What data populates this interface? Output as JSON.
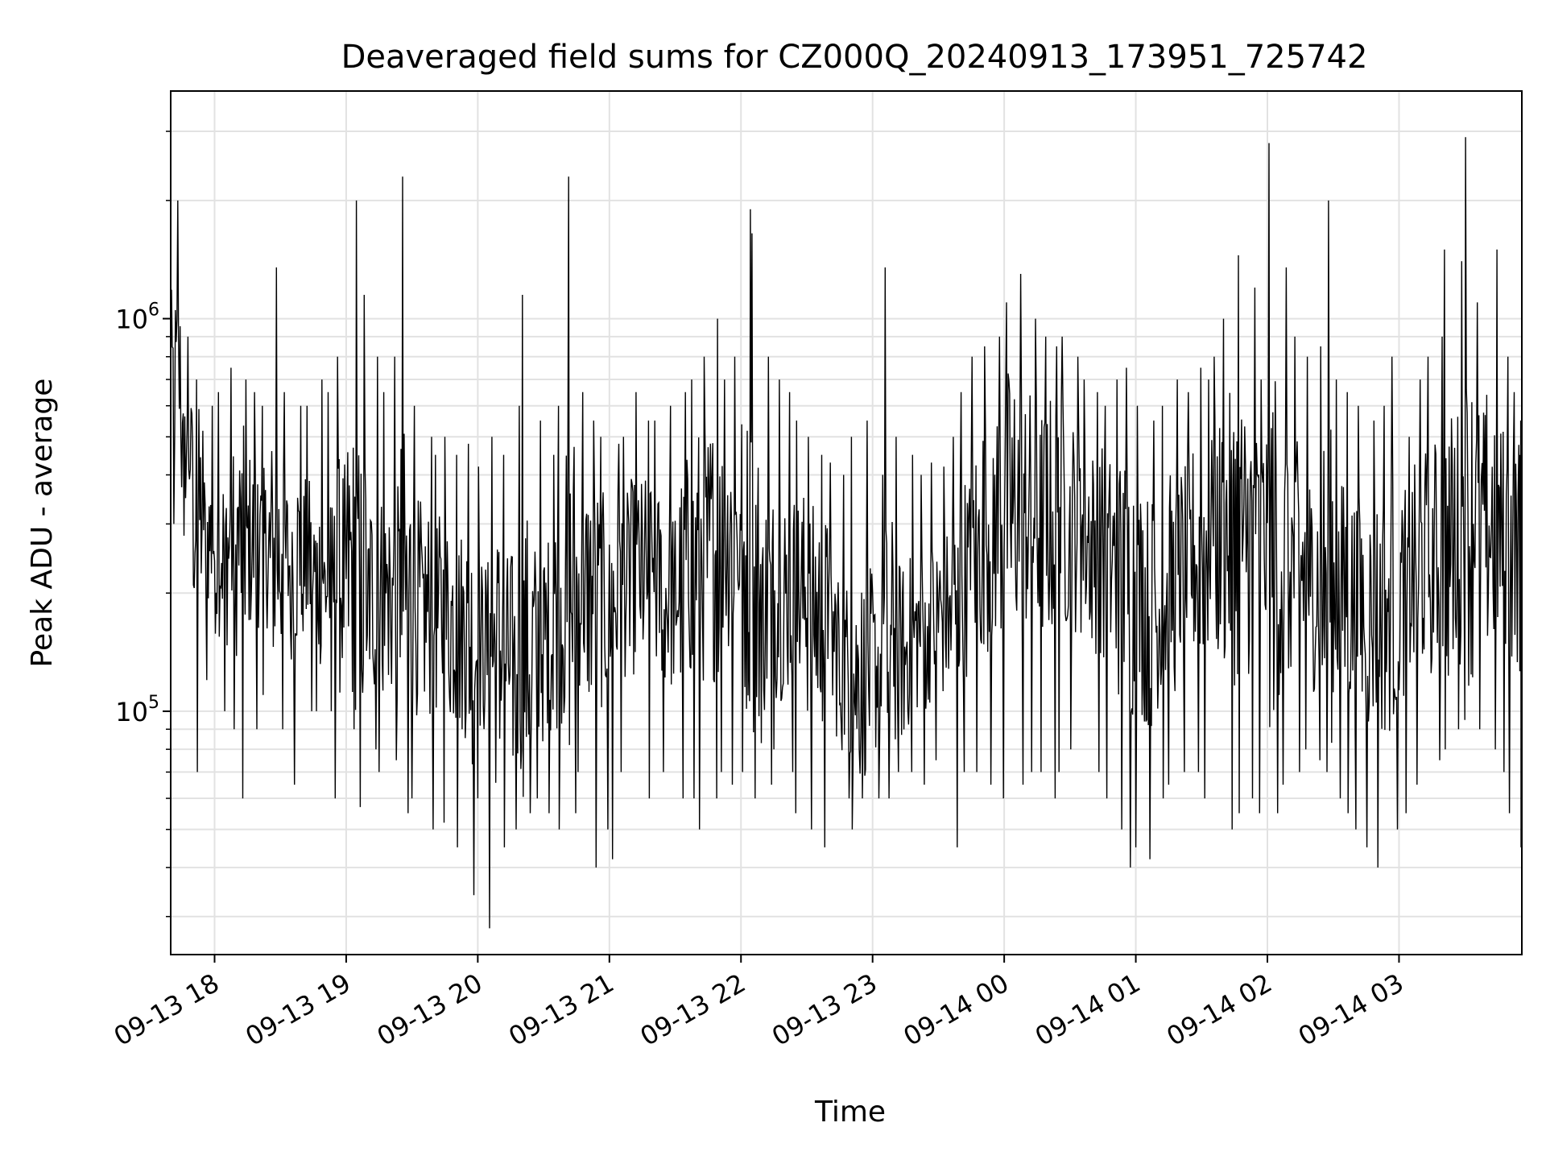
{
  "chart_data": {
    "type": "line",
    "title": "Deaveraged field sums for CZ000Q_20240913_173951_725742",
    "xlabel": "Time",
    "ylabel": "Peak ADU - average",
    "y_scale": "log",
    "ylim": [
      24000,
      3800000
    ],
    "xlim": [
      "2024-09-13 17:40",
      "2024-09-14 03:56"
    ],
    "grid": true,
    "line_color": "#000000",
    "x_ticks": [
      {
        "time": "2024-09-13 18:00",
        "label": "09-13 18"
      },
      {
        "time": "2024-09-13 19:00",
        "label": "09-13 19"
      },
      {
        "time": "2024-09-13 20:00",
        "label": "09-13 20"
      },
      {
        "time": "2024-09-13 21:00",
        "label": "09-13 21"
      },
      {
        "time": "2024-09-13 22:00",
        "label": "09-13 22"
      },
      {
        "time": "2024-09-13 23:00",
        "label": "09-13 23"
      },
      {
        "time": "2024-09-14 00:00",
        "label": "09-14 00"
      },
      {
        "time": "2024-09-14 01:00",
        "label": "09-14 01"
      },
      {
        "time": "2024-09-14 02:00",
        "label": "09-14 02"
      },
      {
        "time": "2024-09-14 03:00",
        "label": "09-14 03"
      }
    ],
    "y_ticks": [
      {
        "value": 100000,
        "base": "10",
        "exp": "5"
      },
      {
        "value": 1000000,
        "base": "10",
        "exp": "6"
      }
    ],
    "series": [
      {
        "x": [
          "2024-09-13 17:40",
          "2024-09-13 17:45",
          "2024-09-13 17:50",
          "2024-09-13 17:55",
          "2024-09-13 18:00",
          "2024-09-13 18:05",
          "2024-09-13 18:10",
          "2024-09-13 18:15",
          "2024-09-13 18:20",
          "2024-09-13 18:25",
          "2024-09-13 18:30",
          "2024-09-13 18:35",
          "2024-09-13 18:40",
          "2024-09-13 18:45",
          "2024-09-13 18:50",
          "2024-09-13 18:55",
          "2024-09-13 19:00",
          "2024-09-13 19:05",
          "2024-09-13 19:10",
          "2024-09-13 19:15",
          "2024-09-13 19:20",
          "2024-09-13 19:25",
          "2024-09-13 19:30",
          "2024-09-13 19:35",
          "2024-09-13 19:40",
          "2024-09-13 19:45",
          "2024-09-13 19:50",
          "2024-09-13 19:55",
          "2024-09-13 20:00",
          "2024-09-13 20:05",
          "2024-09-13 20:10",
          "2024-09-13 20:15",
          "2024-09-13 20:20",
          "2024-09-13 20:25",
          "2024-09-13 20:30",
          "2024-09-13 20:35",
          "2024-09-13 20:40",
          "2024-09-13 20:45",
          "2024-09-13 20:50",
          "2024-09-13 20:55",
          "2024-09-13 21:00",
          "2024-09-13 21:05",
          "2024-09-13 21:10",
          "2024-09-13 21:15",
          "2024-09-13 21:20",
          "2024-09-13 21:25",
          "2024-09-13 21:30",
          "2024-09-13 21:35",
          "2024-09-13 21:40",
          "2024-09-13 21:45",
          "2024-09-13 21:50",
          "2024-09-13 21:55",
          "2024-09-13 22:00",
          "2024-09-13 22:05",
          "2024-09-13 22:10",
          "2024-09-13 22:15",
          "2024-09-13 22:20",
          "2024-09-13 22:25",
          "2024-09-13 22:30",
          "2024-09-13 22:35",
          "2024-09-13 22:40",
          "2024-09-13 22:45",
          "2024-09-13 22:50",
          "2024-09-13 22:55",
          "2024-09-13 23:00",
          "2024-09-13 23:05",
          "2024-09-13 23:10",
          "2024-09-13 23:15",
          "2024-09-13 23:20",
          "2024-09-13 23:25",
          "2024-09-13 23:30",
          "2024-09-13 23:35",
          "2024-09-13 23:40",
          "2024-09-13 23:45",
          "2024-09-13 23:50",
          "2024-09-13 23:55",
          "2024-09-14 00:00",
          "2024-09-14 00:05",
          "2024-09-14 00:10",
          "2024-09-14 00:15",
          "2024-09-14 00:20",
          "2024-09-14 00:25",
          "2024-09-14 00:30",
          "2024-09-14 00:35",
          "2024-09-14 00:40",
          "2024-09-14 00:45",
          "2024-09-14 00:50",
          "2024-09-14 00:55",
          "2024-09-14 01:00",
          "2024-09-14 01:05",
          "2024-09-14 01:10",
          "2024-09-14 01:15",
          "2024-09-14 01:20",
          "2024-09-14 01:25",
          "2024-09-14 01:30",
          "2024-09-14 01:35",
          "2024-09-14 01:40",
          "2024-09-14 01:45",
          "2024-09-14 01:50",
          "2024-09-14 01:55",
          "2024-09-14 02:00",
          "2024-09-14 02:05",
          "2024-09-14 02:10",
          "2024-09-14 02:15",
          "2024-09-14 02:20",
          "2024-09-14 02:25",
          "2024-09-14 02:30",
          "2024-09-14 02:35",
          "2024-09-14 02:40",
          "2024-09-14 02:45",
          "2024-09-14 02:50",
          "2024-09-14 02:55",
          "2024-09-14 03:00",
          "2024-09-14 03:05",
          "2024-09-14 03:10",
          "2024-09-14 03:15",
          "2024-09-14 03:20",
          "2024-09-14 03:25",
          "2024-09-14 03:30",
          "2024-09-14 03:35",
          "2024-09-14 03:40",
          "2024-09-14 03:45",
          "2024-09-14 03:50",
          "2024-09-14 03:55"
        ],
        "typical": [
          700000,
          450000,
          320000,
          280000,
          260000,
          260000,
          270000,
          270000,
          260000,
          250000,
          240000,
          250000,
          240000,
          220000,
          210000,
          220000,
          230000,
          210000,
          200000,
          200000,
          195000,
          190000,
          185000,
          180000,
          175000,
          170000,
          160000,
          150000,
          145000,
          140000,
          135000,
          130000,
          140000,
          150000,
          160000,
          180000,
          200000,
          210000,
          200000,
          190000,
          200000,
          210000,
          220000,
          220000,
          210000,
          200000,
          210000,
          230000,
          250000,
          260000,
          270000,
          280000,
          240000,
          200000,
          190000,
          195000,
          200000,
          195000,
          180000,
          170000,
          150000,
          130000,
          120000,
          125000,
          130000,
          135000,
          140000,
          150000,
          160000,
          170000,
          175000,
          180000,
          220000,
          260000,
          290000,
          310000,
          330000,
          340000,
          320000,
          300000,
          310000,
          320000,
          300000,
          280000,
          260000,
          240000,
          220000,
          210000,
          190000,
          180000,
          190000,
          210000,
          230000,
          250000,
          260000,
          270000,
          280000,
          290000,
          280000,
          270000,
          260000,
          250000,
          240000,
          230000,
          220000,
          210000,
          200000,
          190000,
          180000,
          175000,
          180000,
          190000,
          200000,
          220000,
          240000,
          250000,
          260000,
          280000,
          300000,
          310000,
          300000,
          280000,
          260000,
          240000
        ],
        "high": [
          2000000,
          900000,
          700000,
          600000,
          650000,
          750000,
          700000,
          650000,
          600000,
          1350000,
          650000,
          600000,
          600000,
          700000,
          650000,
          800000,
          2000000,
          1150000,
          800000,
          650000,
          800000,
          2300000,
          600000,
          500000,
          450000,
          500000,
          450000,
          480000,
          420000,
          500000,
          450000,
          600000,
          1150000,
          550000,
          450000,
          600000,
          2300000,
          650000,
          550000,
          500000,
          480000,
          500000,
          650000,
          550000,
          550000,
          600000,
          650000,
          700000,
          800000,
          1000000,
          700000,
          800000,
          1900000,
          1650000,
          800000,
          700000,
          650000,
          550000,
          500000,
          450000,
          430000,
          400000,
          500000,
          550000,
          400000,
          1350000,
          500000,
          450000,
          400000,
          430000,
          420000,
          500000,
          650000,
          800000,
          850000,
          900000,
          1100000,
          1300000,
          1000000,
          900000,
          850000,
          900000,
          800000,
          700000,
          650000,
          600000,
          700000,
          750000,
          600000,
          550000,
          600000,
          700000,
          650000,
          750000,
          700000,
          800000,
          1000000,
          1450000,
          1200000,
          700000,
          2800000,
          1350000,
          900000,
          800000,
          850000,
          2000000,
          700000,
          650000,
          600000,
          550000,
          600000,
          800000,
          500000,
          700000,
          800000,
          900000,
          1500000,
          1400000,
          2900000,
          1100000,
          1500000,
          800000,
          650000,
          550000
        ],
        "low": [
          300000,
          280000,
          70000,
          120000,
          100000,
          90000,
          60000,
          90000,
          110000,
          100000,
          90000,
          65000,
          100000,
          100000,
          100000,
          60000,
          90000,
          57000,
          80000,
          70000,
          75000,
          55000,
          60000,
          50000,
          52000,
          50000,
          45000,
          34000,
          60000,
          28000,
          45000,
          50000,
          55000,
          60000,
          55000,
          50000,
          55000,
          70000,
          40000,
          50000,
          42000,
          70000,
          80000,
          60000,
          70000,
          70000,
          60000,
          60000,
          50000,
          60000,
          70000,
          65000,
          70000,
          60000,
          65000,
          80000,
          70000,
          55000,
          50000,
          45000,
          55000,
          60000,
          50000,
          60000,
          60000,
          60000,
          70000,
          70000,
          65000,
          75000,
          65000,
          45000,
          70000,
          70000,
          65000,
          60000,
          55000,
          65000,
          70000,
          70000,
          60000,
          70000,
          80000,
          75000,
          70000,
          60000,
          50000,
          40000,
          45000,
          42000,
          60000,
          65000,
          70000,
          70000,
          60000,
          55000,
          50000,
          55000,
          60000,
          55000,
          55000,
          65000,
          70000,
          80000,
          75000,
          70000,
          60000,
          55000,
          50000,
          45000,
          40000,
          50000,
          55000,
          65000,
          70000,
          75000,
          80000,
          90000,
          95000,
          90000,
          80000,
          70000,
          55000,
          45000
        ]
      }
    ]
  }
}
